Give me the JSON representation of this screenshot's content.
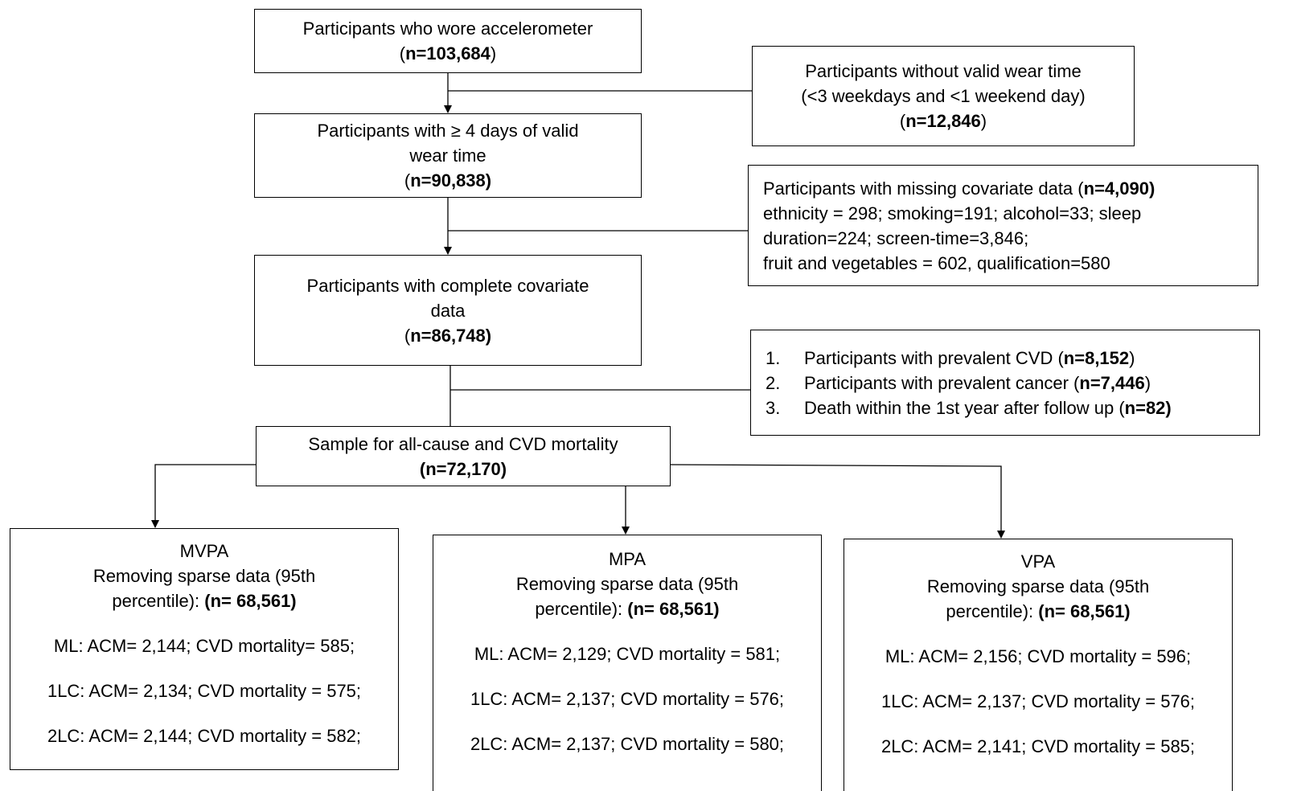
{
  "nodes": [
    {
      "lines": [
        [
          {
            "text": "Participants who wore accelerometer"
          }
        ],
        [
          {
            "text": "("
          },
          {
            "text": "n=103,684",
            "bold": true
          },
          {
            "text": ")"
          }
        ]
      ]
    },
    {
      "lines": [
        [
          {
            "text": "Participants without valid wear time"
          }
        ],
        [
          {
            "text": "(<3 weekdays and <1 weekend day)"
          }
        ],
        [
          {
            "text": "("
          },
          {
            "text": "n=12,846",
            "bold": true
          },
          {
            "text": ")"
          }
        ]
      ]
    },
    {
      "lines": [
        [
          {
            "text": "Participants with ≥ 4 days of valid"
          }
        ],
        [
          {
            "text": "wear time"
          }
        ],
        [
          {
            "text": "("
          },
          {
            "text": "n=90,838)",
            "bold": true
          }
        ]
      ]
    },
    {
      "lines": [
        [
          {
            "text": "Participants with missing covariate data ("
          },
          {
            "text": "n=4,090)",
            "bold": true
          }
        ],
        [
          {
            "text": "ethnicity = 298; smoking=191; alcohol=33; sleep"
          }
        ],
        [
          {
            "text": "duration=224; screen-time=3,846;"
          }
        ],
        [
          {
            "text": "fruit and vegetables = 602, qualification=580"
          }
        ]
      ]
    },
    {
      "lines": [
        [
          {
            "text": "Participants with complete covariate"
          }
        ],
        [
          {
            "text": "data"
          }
        ],
        [
          {
            "text": "("
          },
          {
            "text": "n=86,748)",
            "bold": true
          }
        ]
      ]
    },
    {
      "lines": [
        [
          {
            "text": "1."
          },
          {
            "text": "Participants with prevalent CVD ("
          },
          {
            "text": "n=8,152",
            "bold": true
          },
          {
            "text": ")"
          }
        ],
        [
          {
            "text": "2."
          },
          {
            "text": "Participants with prevalent cancer ("
          },
          {
            "text": "n=7,446",
            "bold": true
          },
          {
            "text": ")"
          }
        ],
        [
          {
            "text": "3."
          },
          {
            "text": "Death within the 1st year after follow up ("
          },
          {
            "text": "n=82)",
            "bold": true
          }
        ]
      ]
    },
    {
      "lines": [
        [
          {
            "text": "Sample for all-cause and CVD mortality"
          }
        ],
        [
          {
            "text": "(n=72,170)",
            "bold": true
          }
        ]
      ]
    },
    {
      "lines": [
        [
          {
            "text": "MVPA"
          }
        ],
        [
          {
            "text": "Removing sparse data (95th"
          }
        ],
        [
          {
            "text": "percentile): "
          },
          {
            "text": "(n= 68,561)",
            "bold": true
          }
        ],
        [
          {
            "text": "ML: ACM= 2,144; CVD mortality= 585;"
          }
        ],
        [
          {
            "text": "1LC: ACM= 2,134; CVD mortality = 575;"
          }
        ],
        [
          {
            "text": "2LC: ACM= 2,144; CVD mortality = 582;"
          }
        ]
      ]
    },
    {
      "lines": [
        [
          {
            "text": "MPA"
          }
        ],
        [
          {
            "text": "Removing sparse data (95th"
          }
        ],
        [
          {
            "text": "percentile): "
          },
          {
            "text": "(n= 68,561)",
            "bold": true
          }
        ],
        [
          {
            "text": "ML: ACM= 2,129; CVD mortality = 581;"
          }
        ],
        [
          {
            "text": "1LC: ACM= 2,137; CVD mortality = 576;"
          }
        ],
        [
          {
            "text": "2LC: ACM= 2,137; CVD mortality = 580;"
          }
        ]
      ]
    },
    {
      "lines": [
        [
          {
            "text": "VPA"
          }
        ],
        [
          {
            "text": "Removing sparse data (95th"
          }
        ],
        [
          {
            "text": "percentile): "
          },
          {
            "text": "(n= 68,561)",
            "bold": true
          }
        ],
        [
          {
            "text": "ML: ACM= 2,156; CVD mortality = 596;"
          }
        ],
        [
          {
            "text": "1LC: ACM= 2,137; CVD mortality = 576;"
          }
        ],
        [
          {
            "text": "2LC: ACM= 2,141; CVD mortality = 585;"
          }
        ]
      ]
    }
  ]
}
